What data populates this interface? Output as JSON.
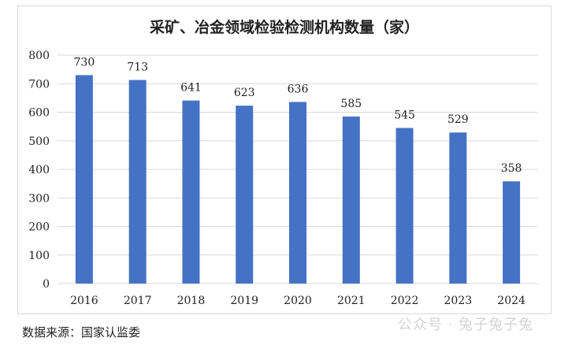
{
  "chart_data": {
    "type": "bar",
    "title": "采矿、冶金领域检验检测机构数量（家）",
    "categories": [
      "2016",
      "2017",
      "2018",
      "2019",
      "2020",
      "2021",
      "2022",
      "2023",
      "2024"
    ],
    "values": [
      730,
      713,
      641,
      623,
      636,
      585,
      545,
      529,
      358
    ],
    "ylim": [
      0,
      800
    ],
    "yticks": [
      0,
      100,
      200,
      300,
      400,
      500,
      600,
      700,
      800
    ],
    "grid": true,
    "legend": "none",
    "bar_color": "#4472c4",
    "grid_color": "#d9d9d9"
  },
  "source_note": "数据来源：国家认监委",
  "watermark": "公众号 · 兔子兔子兔"
}
